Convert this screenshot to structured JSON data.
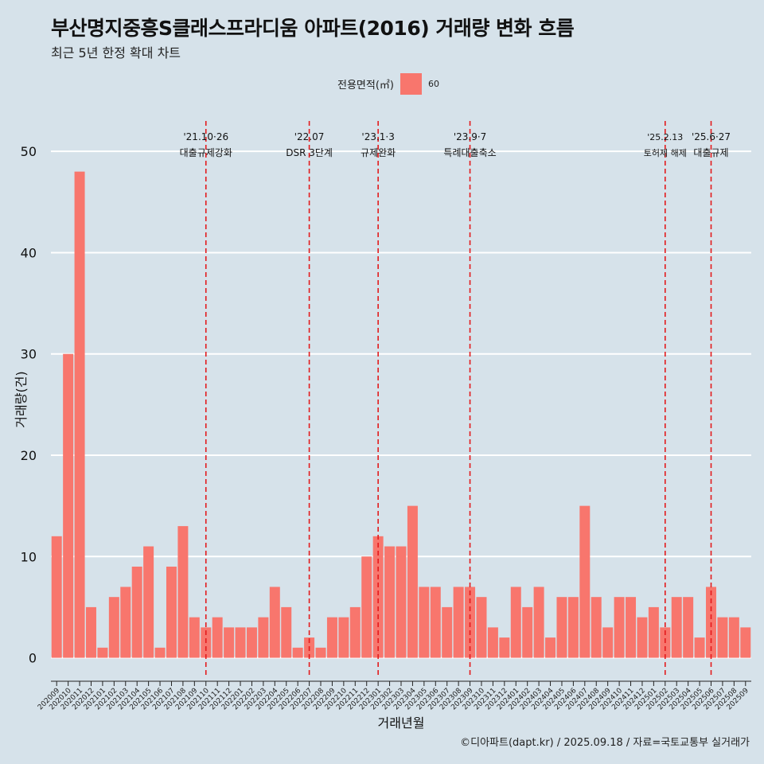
{
  "title": "부산명지중흥S클래스프라디움 아파트(2016) 거래량 변화 흐름",
  "subtitle": "최근 5년 한정 확대 차트",
  "caption": "©디아파트(dapt.kr) / 2025.09.18 / 자료=국토교통부 실거래가",
  "legend": {
    "title": "전용면적(㎡)",
    "items": [
      "60"
    ]
  },
  "colors": {
    "bar": "#f8766d",
    "background": "#d6e2ea",
    "grid": "#ffffff",
    "event_line": "#e31a1c"
  },
  "chart_data": {
    "type": "bar",
    "xlabel": "거래년월",
    "ylabel": "거래량(건)",
    "ylim": [
      -2,
      53
    ],
    "yticks": [
      0,
      10,
      20,
      30,
      40,
      50
    ],
    "grid": true,
    "legend_position": "top",
    "categories": [
      "202009",
      "202010",
      "202011",
      "202012",
      "202101",
      "202102",
      "202103",
      "202104",
      "202105",
      "202106",
      "202107",
      "202108",
      "202109",
      "202110",
      "202111",
      "202112",
      "202201",
      "202202",
      "202203",
      "202204",
      "202205",
      "202206",
      "202207",
      "202208",
      "202209",
      "202210",
      "202211",
      "202212",
      "202301",
      "202302",
      "202303",
      "202304",
      "202305",
      "202306",
      "202307",
      "202308",
      "202309",
      "202310",
      "202311",
      "202312",
      "202401",
      "202402",
      "202403",
      "202404",
      "202405",
      "202406",
      "202407",
      "202408",
      "202409",
      "202410",
      "202411",
      "202412",
      "202501",
      "202502",
      "202503",
      "202504",
      "202505",
      "202506",
      "202507",
      "202508",
      "202509"
    ],
    "series": [
      {
        "name": "60",
        "values": [
          12,
          30,
          48,
          5,
          1,
          6,
          7,
          9,
          11,
          1,
          9,
          13,
          4,
          3,
          4,
          3,
          3,
          3,
          4,
          7,
          5,
          1,
          2,
          1,
          4,
          4,
          5,
          10,
          12,
          11,
          11,
          15,
          7,
          7,
          5,
          7,
          7,
          6,
          3,
          2,
          7,
          5,
          7,
          2,
          6,
          6,
          15,
          6,
          3,
          6,
          6,
          4,
          5,
          3,
          6,
          6,
          2,
          7,
          4,
          4,
          3
        ]
      }
    ],
    "annotations": [
      {
        "category": "202110",
        "date": "'21.10·26",
        "label": "대출규제강화"
      },
      {
        "category": "202207",
        "date": "'22.07",
        "label": "DSR 3단계"
      },
      {
        "category": "202301",
        "date": "'23.1·3",
        "label": "규제완화"
      },
      {
        "category": "202309",
        "date": "'23.9·7",
        "label": "특례대출축소"
      },
      {
        "category": "202502",
        "date": "'25.2.13",
        "label": "토허제 해제"
      },
      {
        "category": "202506",
        "date": "'25.6·27",
        "label": "대출규제"
      }
    ]
  }
}
